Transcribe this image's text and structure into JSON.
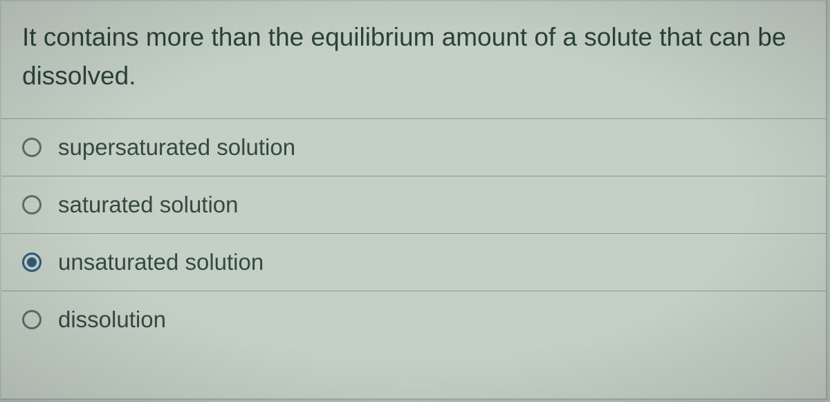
{
  "question": {
    "text": "It contains more than the equilibrium amount of a solute that can be dissolved."
  },
  "options": [
    {
      "label": "supersaturated solution",
      "selected": false
    },
    {
      "label": "saturated solution",
      "selected": false
    },
    {
      "label": "unsaturated solution",
      "selected": true
    },
    {
      "label": "dissolution",
      "selected": false
    }
  ],
  "style": {
    "background_color": "#c7d3c9",
    "border_color": "#9fb0a4",
    "divider_color": "#8b9d90",
    "question_color": "#2b423a",
    "option_text_color": "#354a40",
    "radio_border_color": "#5e7067",
    "radio_selected_color": "#2f5b7a",
    "question_fontsize": 37,
    "option_fontsize": 33,
    "font_family": "Segoe UI"
  }
}
